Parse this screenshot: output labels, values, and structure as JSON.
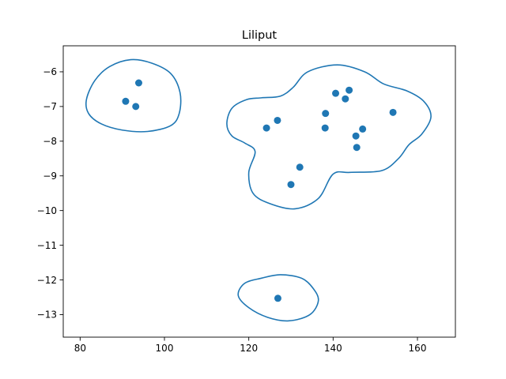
{
  "chart_data": {
    "type": "scatter",
    "title": "Liliput",
    "xlabel": "",
    "ylabel": "",
    "xlim": [
      76,
      169
    ],
    "ylim": [
      -13.65,
      -5.25
    ],
    "xticks": [
      80,
      100,
      120,
      140,
      160
    ],
    "yticks": [
      -6,
      -7,
      -8,
      -9,
      -10,
      -11,
      -12,
      -13
    ],
    "xtick_labels": [
      "80",
      "100",
      "120",
      "140",
      "160"
    ],
    "ytick_labels": [
      "−6",
      "−7",
      "−8",
      "−9",
      "−10",
      "−11",
      "−12",
      "−13"
    ],
    "grid": false,
    "color": "#1f77b4",
    "points": [
      {
        "x": 93.9,
        "y": -6.32
      },
      {
        "x": 90.8,
        "y": -6.85
      },
      {
        "x": 93.2,
        "y": -7.0
      },
      {
        "x": 124.2,
        "y": -7.62
      },
      {
        "x": 126.8,
        "y": -7.4
      },
      {
        "x": 138.2,
        "y": -7.2
      },
      {
        "x": 138.1,
        "y": -7.62
      },
      {
        "x": 140.6,
        "y": -6.62
      },
      {
        "x": 142.9,
        "y": -6.78
      },
      {
        "x": 143.8,
        "y": -6.53
      },
      {
        "x": 145.4,
        "y": -7.85
      },
      {
        "x": 145.6,
        "y": -8.18
      },
      {
        "x": 147.0,
        "y": -7.65
      },
      {
        "x": 154.2,
        "y": -7.17
      },
      {
        "x": 132.1,
        "y": -8.75
      },
      {
        "x": 130.0,
        "y": -9.25
      },
      {
        "x": 126.9,
        "y": -12.53
      }
    ],
    "contours": [
      {
        "name": "",
        "closed": true,
        "path": [
          [
            81.5,
            -6.8
          ],
          [
            83.5,
            -6.25
          ],
          [
            87.0,
            -5.85
          ],
          [
            92.0,
            -5.65
          ],
          [
            97.0,
            -5.75
          ],
          [
            101.5,
            -6.05
          ],
          [
            103.7,
            -6.6
          ],
          [
            103.5,
            -7.2
          ],
          [
            101.5,
            -7.55
          ],
          [
            96.0,
            -7.72
          ],
          [
            90.0,
            -7.68
          ],
          [
            85.0,
            -7.5
          ],
          [
            82.0,
            -7.2
          ]
        ]
      },
      {
        "name": "",
        "closed": true,
        "path": [
          [
            114.8,
            -7.5
          ],
          [
            116.0,
            -7.05
          ],
          [
            119.5,
            -6.8
          ],
          [
            123.0,
            -6.75
          ],
          [
            127.5,
            -6.7
          ],
          [
            130.5,
            -6.45
          ],
          [
            134.0,
            -6.0
          ],
          [
            141.0,
            -5.8
          ],
          [
            147.5,
            -6.0
          ],
          [
            152.0,
            -6.35
          ],
          [
            157.5,
            -6.55
          ],
          [
            161.5,
            -6.85
          ],
          [
            163.2,
            -7.3
          ],
          [
            161.0,
            -7.8
          ],
          [
            158.0,
            -8.1
          ],
          [
            155.5,
            -8.5
          ],
          [
            151.5,
            -8.85
          ],
          [
            144.0,
            -8.9
          ],
          [
            140.0,
            -8.95
          ],
          [
            136.5,
            -9.65
          ],
          [
            131.0,
            -9.95
          ],
          [
            125.0,
            -9.8
          ],
          [
            121.0,
            -9.5
          ],
          [
            120.0,
            -8.9
          ],
          [
            121.5,
            -8.3
          ],
          [
            119.0,
            -8.05
          ],
          [
            116.0,
            -7.85
          ]
        ]
      },
      {
        "name": "",
        "closed": true,
        "path": [
          [
            123.0,
            -11.95
          ],
          [
            127.5,
            -11.85
          ],
          [
            132.5,
            -11.95
          ],
          [
            135.3,
            -12.25
          ],
          [
            136.5,
            -12.6
          ],
          [
            134.5,
            -13.0
          ],
          [
            129.5,
            -13.18
          ],
          [
            124.5,
            -13.08
          ],
          [
            120.0,
            -12.8
          ],
          [
            117.5,
            -12.45
          ],
          [
            119.0,
            -12.1
          ]
        ]
      }
    ]
  }
}
